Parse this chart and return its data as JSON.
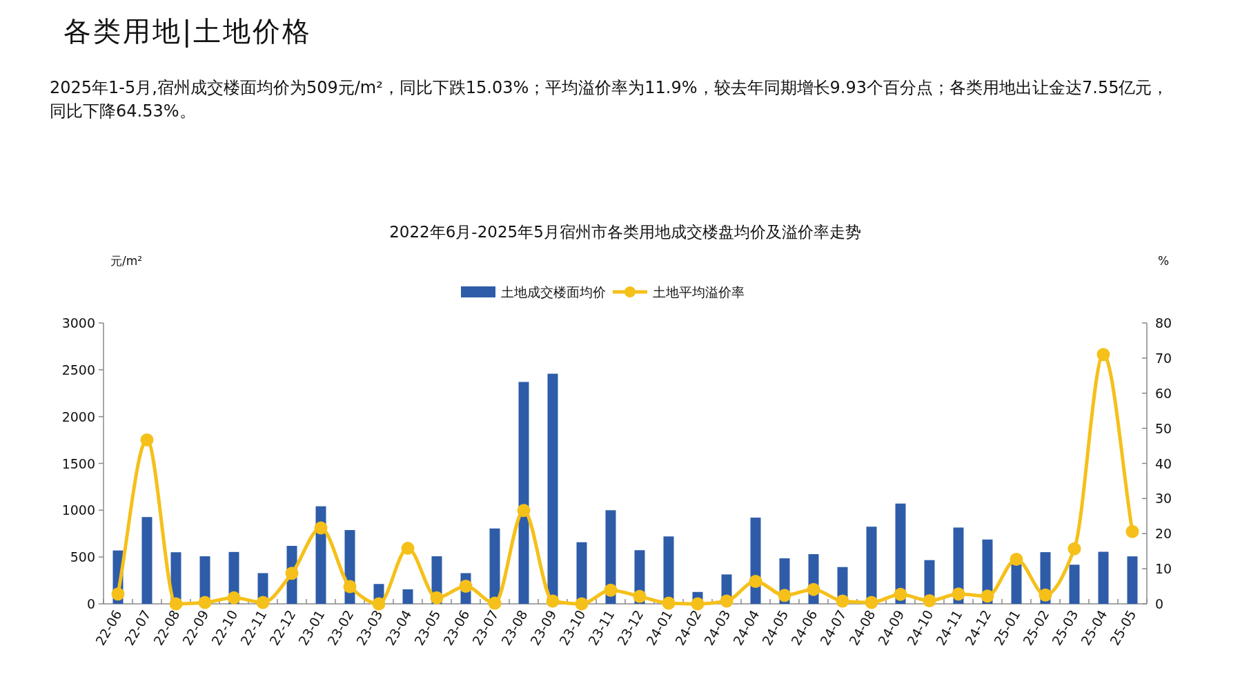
{
  "chart_data": {
    "type": "bar",
    "title": "2022年6月-2025年5月宿州市各类用地成交楼盘均价及溢价率走势",
    "ylabel": "元/m²",
    "y2label": "%",
    "annotations": [
      "各类用地|土地价格",
      "2025年1-5月,宿州成交楼面均价为509元/m²，同比下跌15.03%；平均溢价率为11.9%，较去年同期增长9.93个百分点；各类用地出让金达7.55亿元，同比下降64.53%。"
    ],
    "categories": [
      "22-06",
      "22-07",
      "22-08",
      "22-09",
      "22-10",
      "22-11",
      "22-12",
      "23-01",
      "23-02",
      "23-03",
      "23-04",
      "23-05",
      "23-06",
      "23-07",
      "23-08",
      "23-09",
      "23-10",
      "23-11",
      "23-12",
      "24-01",
      "24-02",
      "24-03",
      "24-04",
      "24-05",
      "24-06",
      "24-07",
      "24-08",
      "24-09",
      "24-10",
      "24-11",
      "24-12",
      "25-01",
      "25-02",
      "25-03",
      "25-04",
      "25-05"
    ],
    "series": [
      {
        "name": "土地成交楼面均价",
        "color": "#2e5ca8",
        "values": [
          570,
          927,
          551,
          508,
          554,
          328,
          619,
          1042,
          788,
          212,
          155,
          508,
          328,
          805,
          2370,
          2458,
          658,
          1000,
          573,
          720,
          127,
          314,
          921,
          486,
          531,
          393,
          824,
          1071,
          467,
          815,
          687,
          420,
          552,
          418,
          556,
          507
        ]
      },
      {
        "name": "土地平均溢价率",
        "type": "line",
        "axis": "y2",
        "color": "#f5c01a",
        "marker": "circle",
        "values": [
          2.8,
          46.7,
          0,
          0.4,
          1.7,
          0.4,
          8.7,
          21.6,
          4.9,
          0,
          15.8,
          1.7,
          5.0,
          0.2,
          26.6,
          0.8,
          0,
          3.9,
          2.1,
          0.2,
          0,
          0.8,
          6.4,
          2.4,
          4.1,
          0.8,
          0.4,
          2.7,
          0.9,
          2.8,
          2.2,
          12.7,
          2.5,
          15.7,
          71.0,
          20.6
        ]
      }
    ],
    "ylim": [
      0,
      3000
    ],
    "yticks": [
      0,
      500,
      1000,
      1500,
      2000,
      2500,
      3000
    ],
    "y2lim": [
      0,
      80
    ],
    "y2ticks": [
      0,
      10,
      20,
      30,
      40,
      50,
      60,
      70,
      80
    ],
    "legend": "top"
  }
}
